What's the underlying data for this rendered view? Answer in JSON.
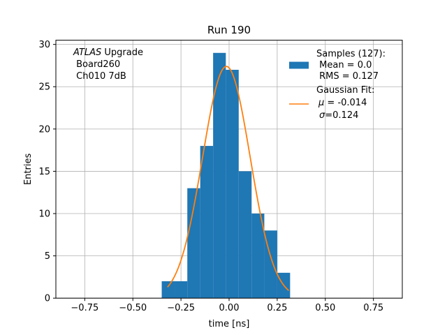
{
  "chart_data": {
    "type": "histogram",
    "title": "Run 190",
    "xlabel": "time [ns]",
    "ylabel": "Entries",
    "xlim": [
      -0.9,
      0.9
    ],
    "ylim": [
      0,
      30.5
    ],
    "grid": true,
    "xticks": [
      -0.75,
      -0.5,
      -0.25,
      0.0,
      0.25,
      0.5,
      0.75
    ],
    "xtick_labels": [
      "−0.75",
      "−0.50",
      "−0.25",
      "0.00",
      "0.25",
      "0.50",
      "0.75"
    ],
    "yticks": [
      0,
      5,
      10,
      15,
      20,
      25,
      30
    ],
    "ytick_labels": [
      "0",
      "5",
      "10",
      "15",
      "20",
      "25",
      "30"
    ],
    "bin_edges": [
      -0.35,
      -0.283,
      -0.217,
      -0.15,
      -0.083,
      -0.017,
      0.05,
      0.117,
      0.183,
      0.25,
      0.317
    ],
    "counts": [
      2,
      2,
      13,
      18,
      29,
      27,
      15,
      10,
      8,
      3
    ],
    "bar_color": "#1f77b4",
    "fit": {
      "name": "Gaussian Fit",
      "mu": -0.014,
      "sigma": 0.124,
      "amplitude": 27.4,
      "x_range": [
        -0.32,
        0.31
      ],
      "color": "#ff7f0e"
    },
    "annotation": {
      "italic": "ATLAS",
      "rest": " Upgrade",
      "line2": " Board260",
      "line3": " Ch010 7dB"
    },
    "legend": {
      "position": "top-right",
      "samples_line1": "Samples (127):",
      "samples_line2": " Mean = 0.0",
      "samples_line3": " RMS = 0.127",
      "fit_line1": "Gaussian Fit:",
      "fit_mu_symbol": "μ",
      "fit_mu_text": " = -0.014",
      "fit_sigma_symbol": "σ",
      "fit_sigma_text": "=0.124"
    }
  }
}
